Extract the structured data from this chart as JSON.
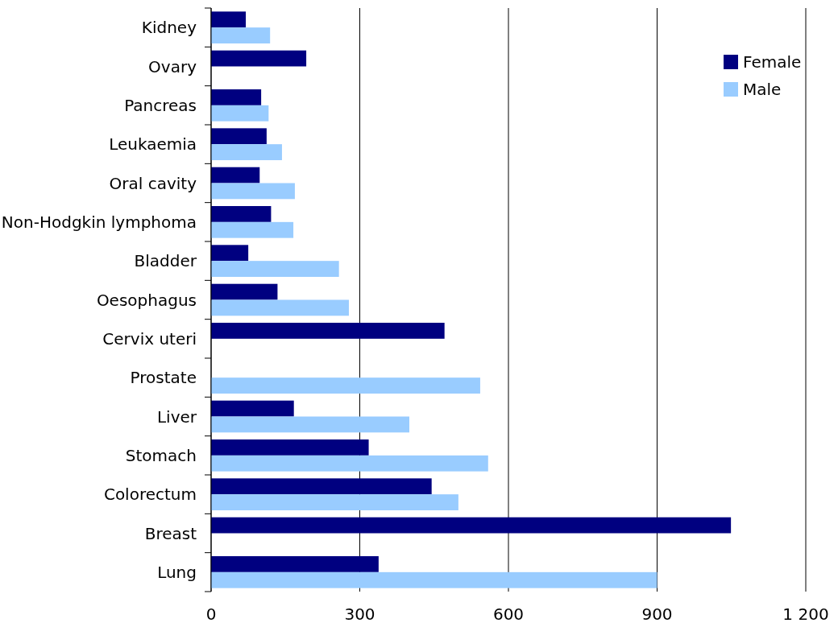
{
  "chart_data": {
    "type": "bar",
    "orientation": "horizontal",
    "categories": [
      "Kidney",
      "Ovary",
      "Pancreas",
      "Leukaemia",
      "Oral cavity",
      "Non-Hodgkin lymphoma",
      "Bladder",
      "Oesophagus",
      "Cervix uteri",
      "Prostate",
      "Liver",
      "Stomach",
      "Colorectum",
      "Breast",
      "Lung"
    ],
    "series": [
      {
        "name": "Female",
        "color": "#000080",
        "values": [
          70,
          192,
          101,
          112,
          98,
          121,
          75,
          134,
          471,
          null,
          167,
          318,
          445,
          1049,
          338
        ]
      },
      {
        "name": "Male",
        "color": "#99ccff",
        "values": [
          119,
          null,
          116,
          143,
          169,
          166,
          258,
          278,
          null,
          543,
          400,
          559,
          499,
          null,
          900
        ]
      }
    ],
    "xlim": [
      0,
      1200
    ],
    "xticks": [
      0,
      300,
      600,
      900,
      {
        "value": 1200,
        "label": "1 200"
      }
    ],
    "grid": "x",
    "legend": "top right"
  }
}
